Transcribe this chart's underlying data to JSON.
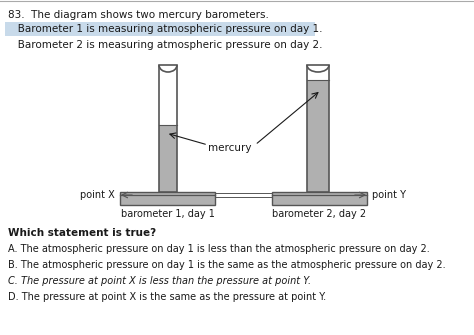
{
  "title": "83.  The diagram shows two mercury barometers.",
  "highlight_text1": "   Barometer 1 is measuring atmospheric pressure on day 1.",
  "text2": "   Barometer 2 is measuring atmospheric pressure on day 2.",
  "mercury_label": "mercury",
  "point_x_label": "point X",
  "point_y_label": "point Y",
  "baro1_label": "barometer 1, day 1",
  "baro2_label": "barometer 2, day 2",
  "question": "Which statement is true?",
  "answer_a": "A. The atmospheric pressure on day 1 is less than the atmospheric pressure on day 2.",
  "answer_b": "B. The atmospheric pressure on day 1 is the same as the atmospheric pressure on day 2.",
  "answer_c": "C. The pressure at point X is less than the pressure at point Y.",
  "answer_d": "D. The pressure at point X is the same as the pressure at point Y.",
  "bg_color": "#ffffff",
  "highlight_color": "#c8daea",
  "mercury_fill": "#b0b0b0",
  "mercury_edge": "#555555",
  "tube_edge": "#555555",
  "tube_fill": "#ffffff",
  "trough_fill": "#b8b8b8",
  "text_color": "#1a1a1a",
  "line_color": "#555555",
  "font_size": 7.5,
  "fig_w": 4.74,
  "fig_h": 3.35,
  "dpi": 100
}
